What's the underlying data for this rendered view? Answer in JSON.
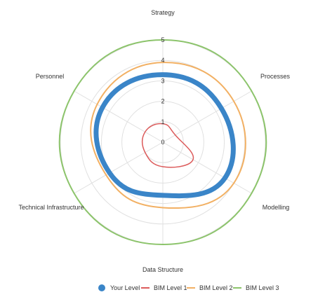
{
  "chart_data": {
    "type": "radar",
    "axes": [
      "Strategy",
      "Processes",
      "Modelling",
      "Data Structure",
      "Technical Infrastructure",
      "Personnel"
    ],
    "rlim": [
      0,
      5
    ],
    "ticks": [
      "0",
      "1",
      "2",
      "3",
      "4",
      "5"
    ],
    "grid": true,
    "legend_position": "bottom",
    "series": [
      {
        "name": "Your Level",
        "color": "#3a85c8",
        "stroke_width": 7,
        "values": [
          3.3,
          3.3,
          3.5,
          2.6,
          3.0,
          3.4
        ]
      },
      {
        "name": "BIM Level 1",
        "color": "#dc5b5b",
        "stroke_width": 1.5,
        "values": [
          0.9,
          0.7,
          1.7,
          1.2,
          1.0,
          1.0
        ]
      },
      {
        "name": "BIM Level 2",
        "color": "#f2b063",
        "stroke_width": 2,
        "values": [
          3.9,
          4.0,
          4.0,
          3.2,
          3.2,
          3.7
        ]
      },
      {
        "name": "BIM Level 3",
        "color": "#8cc46b",
        "stroke_width": 2,
        "values": [
          5.0,
          5.0,
          5.0,
          5.0,
          5.0,
          5.0
        ]
      }
    ]
  }
}
